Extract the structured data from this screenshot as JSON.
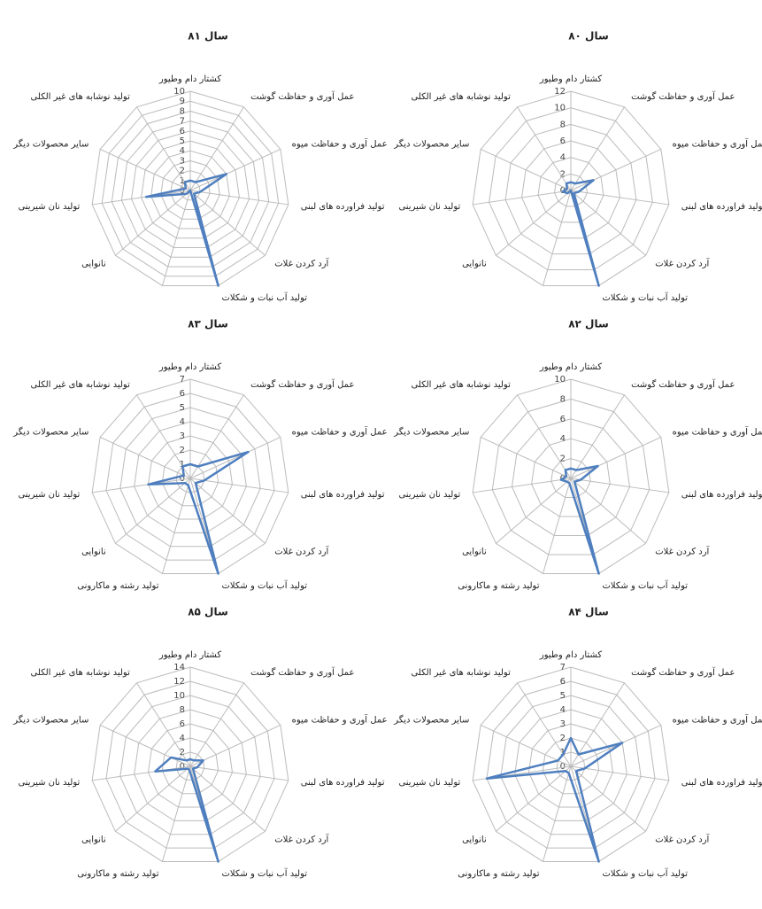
{
  "chart_data": [
    {
      "type": "radar",
      "title": "سال ۸۱",
      "ylim": [
        0,
        10
      ],
      "yticks": [
        0,
        1,
        2,
        3,
        4,
        5,
        6,
        7,
        8,
        9,
        10
      ],
      "color": "#4f7fbf",
      "categories": [
        "کشتار دام وطیور",
        "عمل آوری و حفاظت گوشت",
        "عمل آوری و حفاظت میوه",
        "تولید فراورده های لبنی",
        "آرد کردن غلات",
        "تولید آب نبات و شکلات",
        null,
        "نانوایی",
        "تولید نان شیرینی",
        "سایر محصولات دیگر",
        "تولید نوشابه های غیر الکلی"
      ],
      "values": [
        1,
        1,
        4,
        1,
        0.5,
        10,
        0,
        0.5,
        4.5,
        0.5,
        1
      ]
    },
    {
      "type": "radar",
      "title": "سال ۸۰",
      "ylim": [
        0,
        12
      ],
      "yticks": [
        0,
        2,
        4,
        6,
        8,
        10,
        12
      ],
      "color": "#4f7fbf",
      "categories": [
        "کشتار دام وطیور",
        "عمل آوری و حفاظت گوشت",
        "عمل آوری و حفاظت میوه",
        "تولید فراورده های لبنی",
        "آرد کردن غلات",
        "تولید آب نبات و شکلات",
        null,
        "نانوایی",
        "تولید نان شیرینی",
        "سایر محصولات دیگر",
        "تولید نوشابه های غیر الکلی"
      ],
      "values": [
        1,
        1,
        3,
        1,
        0.5,
        12,
        0,
        0.5,
        1,
        0.5,
        1
      ]
    },
    {
      "type": "radar",
      "title": "سال ۸۳",
      "ylim": [
        0,
        7
      ],
      "yticks": [
        0,
        1,
        2,
        3,
        4,
        5,
        6,
        7
      ],
      "color": "#4f7fbf",
      "categories": [
        "کشتار دام وطیور",
        "عمل آوری و حفاظت گوشت",
        "عمل آوری و حفاظت میوه",
        "تولید فراورده های لبنی",
        "آرد کردن غلات",
        "تولید آب نبات و شکلات",
        "تولید رشته و ماکارونی",
        "نانوایی",
        "تولید نان شیرینی",
        "سایر محصولات دیگر",
        "تولید نوشابه های غیر الکلی"
      ],
      "values": [
        1,
        1,
        4.5,
        1,
        0.5,
        7,
        0.5,
        0.5,
        3,
        0.5,
        1
      ]
    },
    {
      "type": "radar",
      "title": "سال ۸۲",
      "ylim": [
        0,
        10
      ],
      "yticks": [
        0,
        2,
        4,
        6,
        8,
        10
      ],
      "color": "#4f7fbf",
      "categories": [
        "کشتار دام وطیور",
        "عمل آوری و حفاظت گوشت",
        "عمل آوری و حفاظت میوه",
        "تولید فراورده های لبنی",
        "آرد کردن غلات",
        "تولید آب نبات و شکلات",
        "تولید رشته و ماکارونی",
        "نانوایی",
        "تولید نان شیرینی",
        "سایر محصولات دیگر",
        "تولید نوشابه های غیر الکلی"
      ],
      "values": [
        1,
        1,
        3,
        1,
        0.5,
        10,
        0.5,
        0.5,
        1,
        0.5,
        1
      ]
    },
    {
      "type": "radar",
      "title": "سال ۸۵",
      "ylim": [
        0,
        14
      ],
      "yticks": [
        0,
        2,
        4,
        6,
        8,
        10,
        12,
        14
      ],
      "color": "#4f7fbf",
      "categories": [
        "کشتار دام وطیور",
        "عمل آوری و حفاظت گوشت",
        "عمل آوری و حفاظت میوه",
        "تولید فراورده های لبنی",
        "آرد کردن غلات",
        "تولید آب نبات و شکلات",
        "تولید رشته و ماکارونی",
        "نانوایی",
        "تولید نان شیرینی",
        "سایر محصولات دیگر",
        "تولید نوشابه های غیر الکلی"
      ],
      "values": [
        1,
        1,
        2,
        1,
        0.5,
        14,
        0.5,
        0.5,
        5,
        3,
        1
      ]
    },
    {
      "type": "radar",
      "title": "سال ۸۴",
      "ylim": [
        0,
        7
      ],
      "yticks": [
        0,
        1,
        2,
        3,
        4,
        5,
        6,
        7
      ],
      "color": "#4f7fbf",
      "categories": [
        "کشتار دام وطیور",
        "عمل آوری و حفاظت گوشت",
        "عمل آوری و حفاظت میوه",
        "تولید فراورده های لبنی",
        "آرد کردن غلات",
        "تولید آب نبات و شکلات",
        "تولید رشته و ماکارونی",
        "نانوایی",
        "تولید نان شیرینی",
        "سایر محصولات دیگر",
        "تولید نوشابه های غیر الکلی"
      ],
      "values": [
        2,
        1,
        4,
        1,
        0.5,
        7,
        0.5,
        0.5,
        6,
        1,
        1
      ]
    }
  ]
}
